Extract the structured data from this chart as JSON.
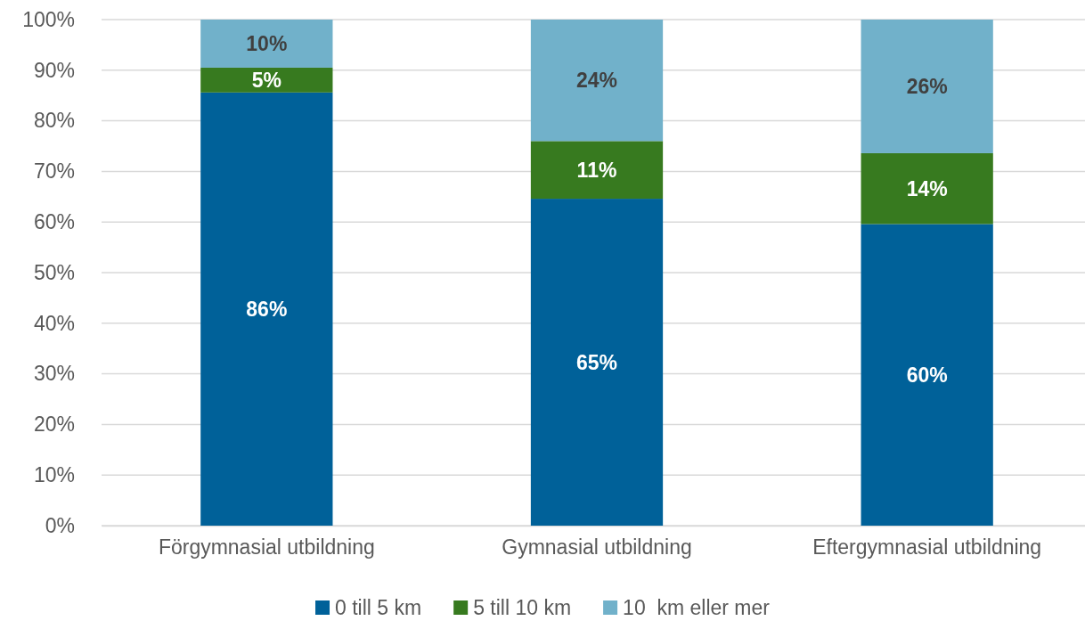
{
  "chart_data": {
    "type": "bar",
    "stacked": true,
    "categories": [
      "Förgymnasial utbildning",
      "Gymnasial utbildning",
      "Eftergymnasial utbildning"
    ],
    "series": [
      {
        "name": "0 till 5 km",
        "color": "#006199",
        "values": [
          85.6,
          64.6,
          59.6
        ],
        "value_labels": [
          "86%",
          "65%",
          "60%"
        ]
      },
      {
        "name": "5 till 10 km",
        "color": "#377a1f",
        "values": [
          4.9,
          11.4,
          14.0
        ],
        "value_labels": [
          "5%",
          "11%",
          "14%"
        ]
      },
      {
        "name": "10  km eller mer",
        "color": "#71b1ca",
        "values": [
          9.5,
          24.0,
          26.4
        ],
        "value_labels": [
          "10%",
          "24%",
          "26%"
        ]
      }
    ],
    "ylim": [
      0,
      100
    ],
    "yticks": [
      {
        "value": 0,
        "label": "0%"
      },
      {
        "value": 10,
        "label": "10%"
      },
      {
        "value": 20,
        "label": "20%"
      },
      {
        "value": 30,
        "label": "30%"
      },
      {
        "value": 40,
        "label": "40%"
      },
      {
        "value": 50,
        "label": "50%"
      },
      {
        "value": 60,
        "label": "60%"
      },
      {
        "value": 70,
        "label": "70%"
      },
      {
        "value": 80,
        "label": "80%"
      },
      {
        "value": 90,
        "label": "90%"
      },
      {
        "value": 100,
        "label": "100%"
      }
    ],
    "grid": "y",
    "legend": "bottom"
  }
}
